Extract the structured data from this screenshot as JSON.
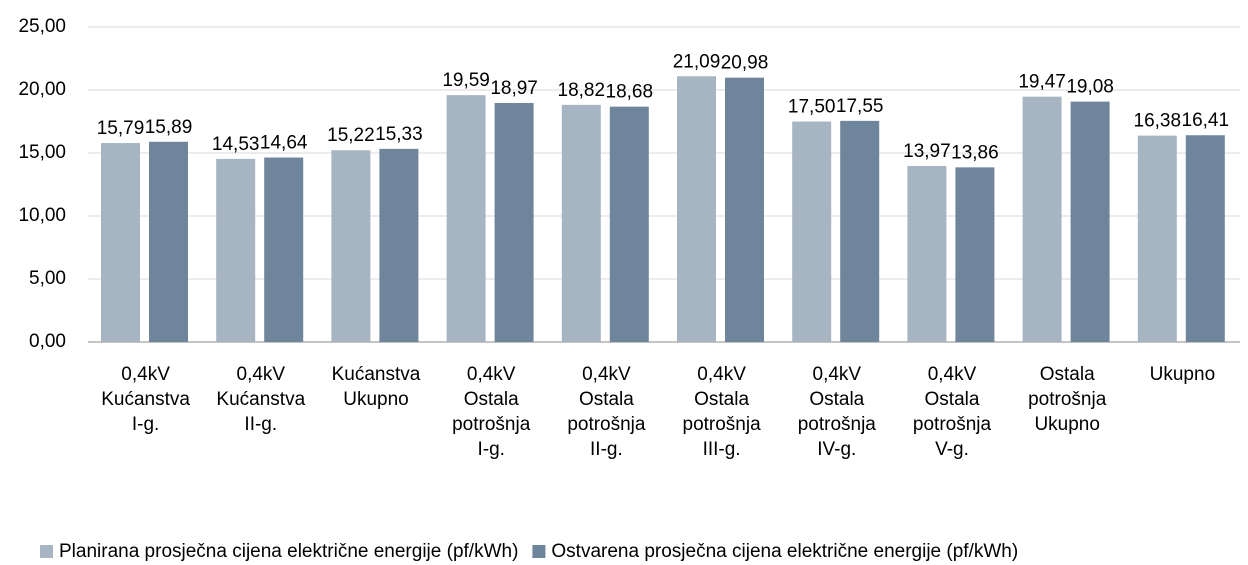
{
  "chart_data": {
    "type": "bar",
    "categories": [
      [
        "0,4kV",
        "Kućanstva",
        "I-g."
      ],
      [
        "0,4kV",
        "Kućanstva",
        "II-g."
      ],
      [
        "Kućanstva",
        "Ukupno"
      ],
      [
        "0,4kV",
        "Ostala",
        "potrošnja",
        "I-g."
      ],
      [
        "0,4kV",
        "Ostala",
        "potrošnja",
        "II-g."
      ],
      [
        "0,4kV",
        "Ostala",
        "potrošnja",
        "III-g."
      ],
      [
        "0,4kV",
        "Ostala",
        "potrošnja",
        "IV-g."
      ],
      [
        "0,4kV",
        "Ostala",
        "potrošnja",
        "V-g."
      ],
      [
        "Ostala",
        "potrošnja",
        "Ukupno"
      ],
      [
        "Ukupno"
      ]
    ],
    "series": [
      {
        "name": "Planirana prosječna cijena električne energije (pf/kWh)",
        "color": "#a7b5c3",
        "values": [
          15.79,
          14.53,
          15.22,
          19.59,
          18.82,
          21.09,
          17.5,
          13.97,
          19.47,
          16.38
        ],
        "value_labels": [
          "15,79",
          "14,53",
          "15,22",
          "19,59",
          "18,82",
          "21,09",
          "17,50",
          "13,97",
          "19,47",
          "16,38"
        ]
      },
      {
        "name": "Ostvarena prosječna cijena električne energije (pf/kWh)",
        "color": "#6f859b",
        "values": [
          15.89,
          14.64,
          15.33,
          18.97,
          18.68,
          20.98,
          17.55,
          13.86,
          19.08,
          16.41
        ],
        "value_labels": [
          "15,89",
          "14,64",
          "15,33",
          "18,97",
          "18,68",
          "20,98",
          "17,55",
          "13,86",
          "19,08",
          "16,41"
        ]
      }
    ],
    "ylim": [
      0,
      25
    ],
    "yticks": [
      {
        "value": 0,
        "label": "0,00"
      },
      {
        "value": 5,
        "label": "5,00"
      },
      {
        "value": 10,
        "label": "10,00"
      },
      {
        "value": 15,
        "label": "15,00"
      },
      {
        "value": 20,
        "label": "20,00"
      },
      {
        "value": 25,
        "label": "25,00"
      }
    ],
    "grid": true,
    "legend": "bottom"
  }
}
